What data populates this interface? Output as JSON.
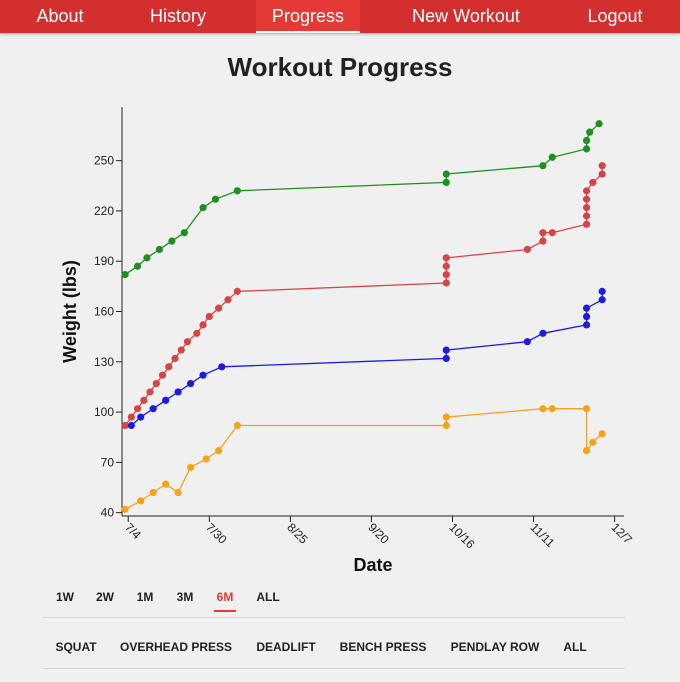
{
  "nav": {
    "items": [
      {
        "label": "About",
        "active": false
      },
      {
        "label": "History",
        "active": false
      },
      {
        "label": "Progress",
        "active": true
      },
      {
        "label": "New Workout",
        "active": false
      },
      {
        "label": "Logout",
        "active": false
      }
    ]
  },
  "page": {
    "title": "Workout Progress"
  },
  "ranges": {
    "items": [
      {
        "label": "1W",
        "active": false
      },
      {
        "label": "2W",
        "active": false
      },
      {
        "label": "1M",
        "active": false
      },
      {
        "label": "3M",
        "active": false
      },
      {
        "label": "6M",
        "active": true
      },
      {
        "label": "ALL",
        "active": false
      }
    ]
  },
  "exercises": {
    "items": [
      {
        "label": "SQUAT",
        "active": true
      },
      {
        "label": "OVERHEAD PRESS",
        "active": true
      },
      {
        "label": "DEADLIFT",
        "active": true
      },
      {
        "label": "BENCH PRESS",
        "active": true
      },
      {
        "label": "PENDLAY ROW",
        "active": false
      },
      {
        "label": "ALL",
        "active": false
      }
    ]
  },
  "chart_data": {
    "type": "line",
    "title": "",
    "xlabel": "Date",
    "ylabel": "Weight (lbs)",
    "x_ticks": [
      "7/4",
      "7/30",
      "8/25",
      "9/20",
      "10/16",
      "11/11",
      "12/7"
    ],
    "x_range": [
      "2018-07-02",
      "2018-12-10"
    ],
    "y_ticks": [
      40,
      70,
      100,
      130,
      160,
      190,
      220,
      250
    ],
    "ylim": [
      38,
      282
    ],
    "grid": false,
    "series": [
      {
        "color": "#1f8f1f",
        "points": [
          [
            "2018-07-03",
            182
          ],
          [
            "2018-07-07",
            187
          ],
          [
            "2018-07-10",
            192
          ],
          [
            "2018-07-14",
            197
          ],
          [
            "2018-07-18",
            202
          ],
          [
            "2018-07-22",
            207
          ],
          [
            "2018-07-28",
            222
          ],
          [
            "2018-08-01",
            227
          ],
          [
            "2018-08-08",
            232
          ],
          [
            "2018-10-14",
            237
          ],
          [
            "2018-10-14",
            242
          ],
          [
            "2018-11-14",
            247
          ],
          [
            "2018-11-17",
            252
          ],
          [
            "2018-11-28",
            257
          ],
          [
            "2018-11-28",
            262
          ],
          [
            "2018-11-29",
            267
          ],
          [
            "2018-12-02",
            272
          ]
        ]
      },
      {
        "color": "#d64545",
        "points": [
          [
            "2018-07-03",
            92
          ],
          [
            "2018-07-05",
            97
          ],
          [
            "2018-07-07",
            102
          ],
          [
            "2018-07-09",
            107
          ],
          [
            "2018-07-11",
            112
          ],
          [
            "2018-07-13",
            117
          ],
          [
            "2018-07-15",
            122
          ],
          [
            "2018-07-17",
            127
          ],
          [
            "2018-07-19",
            132
          ],
          [
            "2018-07-21",
            137
          ],
          [
            "2018-07-23",
            142
          ],
          [
            "2018-07-26",
            147
          ],
          [
            "2018-07-28",
            152
          ],
          [
            "2018-07-30",
            157
          ],
          [
            "2018-08-02",
            162
          ],
          [
            "2018-08-05",
            167
          ],
          [
            "2018-08-08",
            172
          ],
          [
            "2018-10-14",
            177
          ],
          [
            "2018-10-14",
            182
          ],
          [
            "2018-10-14",
            187
          ],
          [
            "2018-10-14",
            192
          ],
          [
            "2018-11-09",
            197
          ],
          [
            "2018-11-14",
            202
          ],
          [
            "2018-11-14",
            207
          ],
          [
            "2018-11-17",
            207
          ],
          [
            "2018-11-28",
            212
          ],
          [
            "2018-11-28",
            217
          ],
          [
            "2018-11-28",
            222
          ],
          [
            "2018-11-28",
            227
          ],
          [
            "2018-11-28",
            232
          ],
          [
            "2018-11-30",
            237
          ],
          [
            "2018-12-03",
            242
          ],
          [
            "2018-12-03",
            247
          ]
        ]
      },
      {
        "color": "#1c1ce0",
        "points": [
          [
            "2018-07-05",
            92
          ],
          [
            "2018-07-08",
            97
          ],
          [
            "2018-07-12",
            102
          ],
          [
            "2018-07-16",
            107
          ],
          [
            "2018-07-20",
            112
          ],
          [
            "2018-07-24",
            117
          ],
          [
            "2018-07-28",
            122
          ],
          [
            "2018-08-03",
            127
          ],
          [
            "2018-10-14",
            132
          ],
          [
            "2018-10-14",
            137
          ],
          [
            "2018-11-09",
            142
          ],
          [
            "2018-11-14",
            147
          ],
          [
            "2018-11-28",
            152
          ],
          [
            "2018-11-28",
            157
          ],
          [
            "2018-11-28",
            162
          ],
          [
            "2018-12-03",
            167
          ],
          [
            "2018-12-03",
            172
          ]
        ]
      },
      {
        "color": "#f5a31a",
        "points": [
          [
            "2018-07-03",
            42
          ],
          [
            "2018-07-08",
            47
          ],
          [
            "2018-07-12",
            52
          ],
          [
            "2018-07-16",
            57
          ],
          [
            "2018-07-20",
            52
          ],
          [
            "2018-07-24",
            67
          ],
          [
            "2018-07-29",
            72
          ],
          [
            "2018-08-02",
            77
          ],
          [
            "2018-08-08",
            92
          ],
          [
            "2018-10-14",
            92
          ],
          [
            "2018-10-14",
            97
          ],
          [
            "2018-11-14",
            102
          ],
          [
            "2018-11-17",
            102
          ],
          [
            "2018-11-28",
            102
          ],
          [
            "2018-11-28",
            77
          ],
          [
            "2018-11-30",
            82
          ],
          [
            "2018-12-03",
            87
          ]
        ]
      }
    ]
  }
}
